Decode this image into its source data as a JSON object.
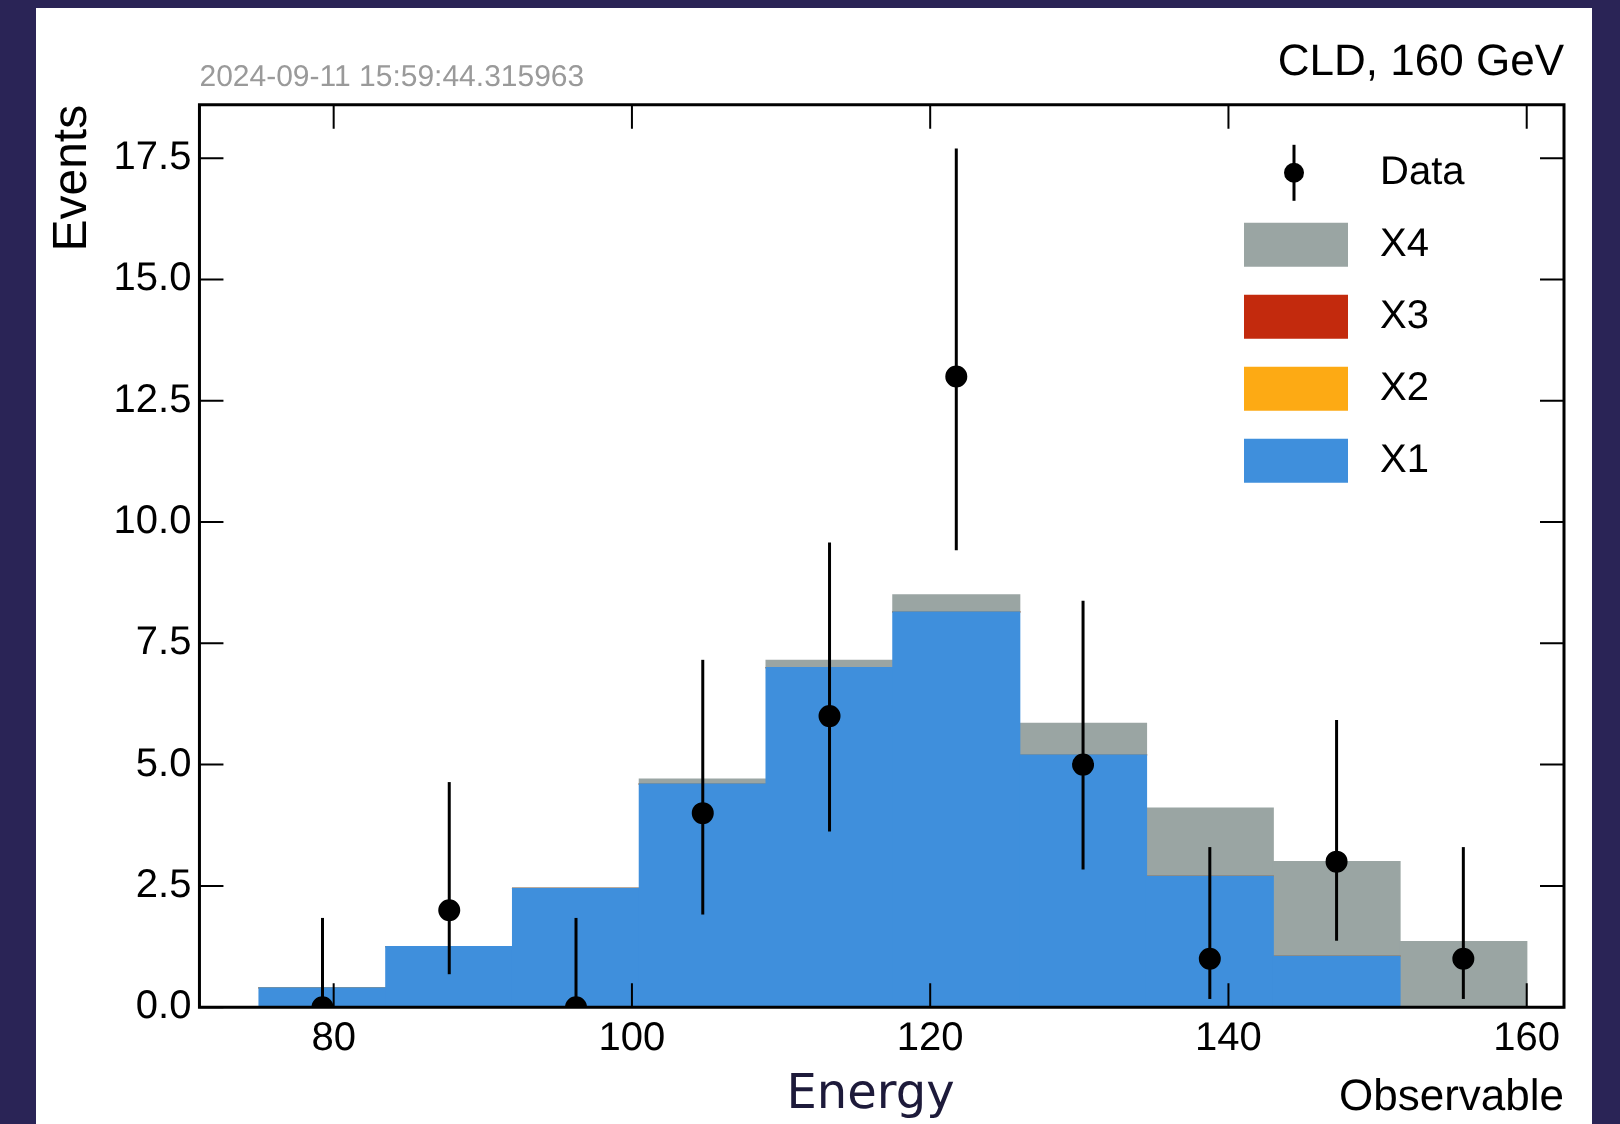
{
  "chart_data": {
    "type": "bar",
    "title": "CLD, 160 GeV",
    "xlabel": "Observable",
    "ylabel": "Events",
    "annotations": [
      "2024-09-11 15:59:44.315963",
      "Energy"
    ],
    "x": [
      79.25,
      87.75,
      96.25,
      104.75,
      113.25,
      121.75,
      130.25,
      138.75,
      147.25,
      155.75
    ],
    "stacked": true,
    "series": [
      {
        "name": "X1",
        "color": "#3f8fdc",
        "values": [
          0.4,
          1.25,
          2.45,
          4.6,
          7.0,
          8.15,
          5.2,
          2.7,
          1.05,
          0
        ]
      },
      {
        "name": "X2",
        "color": "#fdaa14",
        "values": [
          0,
          0,
          0,
          0,
          0,
          0,
          0,
          0,
          0,
          0
        ]
      },
      {
        "name": "X3",
        "color": "#c32a0d",
        "values": [
          0,
          0,
          0,
          0,
          0,
          0,
          0,
          0,
          0,
          0
        ]
      },
      {
        "name": "X4",
        "color": "#9aa5a3",
        "values": [
          0,
          0,
          0,
          0.1,
          0.15,
          0.35,
          0.65,
          1.4,
          1.95,
          1.35
        ]
      },
      {
        "name": "Data",
        "type": "scatter",
        "color": "#000000",
        "marker": "circle",
        "x": [
          79.25,
          87.75,
          96.25,
          104.75,
          113.25,
          121.75,
          130.25,
          138.75,
          147.25,
          155.75
        ],
        "values": [
          0,
          2,
          0,
          4,
          6,
          13,
          5,
          1,
          3,
          1
        ],
        "errors": [
          [
            0,
            1.84
          ],
          [
            0.68,
            4.64
          ],
          [
            0,
            1.84
          ],
          [
            1.91,
            7.16
          ],
          [
            3.62,
            9.58
          ],
          [
            9.42,
            17.7
          ],
          [
            2.84,
            8.38
          ],
          [
            0.17,
            3.3
          ],
          [
            1.37,
            5.92
          ],
          [
            0.17,
            3.3
          ]
        ]
      }
    ],
    "xlim": [
      71,
      162.5
    ],
    "ylim": [
      0,
      18.6
    ],
    "xticks": [
      80,
      100,
      120,
      140,
      160
    ],
    "yticks": [
      {
        "value": 0,
        "label": "0.0"
      },
      {
        "value": 2.5,
        "label": "2.5"
      },
      {
        "value": 5,
        "label": "5.0"
      },
      {
        "value": 7.5,
        "label": "7.5"
      },
      {
        "value": 10,
        "label": "10.0"
      },
      {
        "value": 12.5,
        "label": "12.5"
      },
      {
        "value": 15,
        "label": "15.0"
      },
      {
        "value": 17.5,
        "label": "17.5"
      }
    ],
    "legend": "top right"
  }
}
